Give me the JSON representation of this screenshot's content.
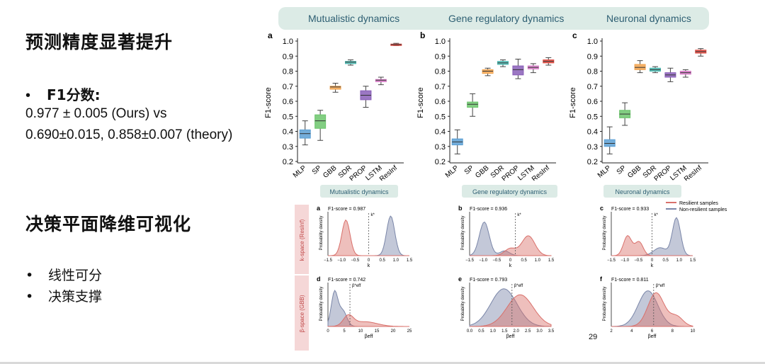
{
  "slide": {
    "title_top": "预测精度显著提升",
    "title_bottom": "决策平面降维可视化",
    "f1_bullet": {
      "marker": "•",
      "label": "F1分数:"
    },
    "f1_line1": "0.977 ± 0.005 (Ours) vs",
    "f1_line2": "0.690±0.015, 0.858±0.007 (theory)",
    "bullets": [
      {
        "marker": "•",
        "text": "线性可分"
      },
      {
        "marker": "•",
        "text": "决策支撑"
      }
    ],
    "page_number": "29"
  },
  "figure_top": {
    "headers": [
      "Mutualistic dynamics",
      "Gene regulatory dynamics",
      "Neuronal dynamics"
    ],
    "ylabel": "F1-score",
    "yticks": [
      "1.0",
      "0.9",
      "0.8",
      "0.7",
      "0.6",
      "0.5",
      "0.4",
      "0.3",
      "0.2"
    ],
    "categories": [
      "MLP",
      "SP",
      "GBB",
      "SDR",
      "PROP",
      "LSTM",
      "ResInf"
    ],
    "colors": [
      "#5a9fd4",
      "#6cc56c",
      "#f2a34e",
      "#49b8b0",
      "#8a5fb8",
      "#d679c6",
      "#e0483e"
    ],
    "panels": [
      {
        "letter": "a",
        "boxes": [
          {
            "q1": 0.355,
            "median": 0.385,
            "q3": 0.41,
            "min": 0.31,
            "max": 0.47
          },
          {
            "q1": 0.42,
            "median": 0.47,
            "q3": 0.51,
            "min": 0.34,
            "max": 0.54
          },
          {
            "q1": 0.68,
            "median": 0.695,
            "q3": 0.7,
            "min": 0.66,
            "max": 0.72
          },
          {
            "q1": 0.85,
            "median": 0.86,
            "q3": 0.865,
            "min": 0.84,
            "max": 0.875
          },
          {
            "q1": 0.61,
            "median": 0.64,
            "q3": 0.67,
            "min": 0.56,
            "max": 0.7
          },
          {
            "q1": 0.73,
            "median": 0.74,
            "q3": 0.745,
            "min": 0.71,
            "max": 0.76
          },
          {
            "q1": 0.974,
            "median": 0.977,
            "q3": 0.98,
            "min": 0.97,
            "max": 0.985
          }
        ]
      },
      {
        "letter": "b",
        "boxes": [
          {
            "q1": 0.31,
            "median": 0.33,
            "q3": 0.35,
            "min": 0.25,
            "max": 0.41
          },
          {
            "q1": 0.56,
            "median": 0.58,
            "q3": 0.595,
            "min": 0.5,
            "max": 0.65
          },
          {
            "q1": 0.785,
            "median": 0.8,
            "q3": 0.81,
            "min": 0.77,
            "max": 0.82
          },
          {
            "q1": 0.845,
            "median": 0.855,
            "q3": 0.865,
            "min": 0.83,
            "max": 0.875
          },
          {
            "q1": 0.775,
            "median": 0.81,
            "q3": 0.835,
            "min": 0.75,
            "max": 0.88
          },
          {
            "q1": 0.815,
            "median": 0.825,
            "q3": 0.835,
            "min": 0.79,
            "max": 0.85
          },
          {
            "q1": 0.855,
            "median": 0.865,
            "q3": 0.875,
            "min": 0.84,
            "max": 0.89
          }
        ]
      },
      {
        "letter": "c",
        "boxes": [
          {
            "q1": 0.3,
            "median": 0.32,
            "q3": 0.345,
            "min": 0.25,
            "max": 0.43
          },
          {
            "q1": 0.49,
            "median": 0.515,
            "q3": 0.54,
            "min": 0.44,
            "max": 0.59
          },
          {
            "q1": 0.81,
            "median": 0.825,
            "q3": 0.845,
            "min": 0.79,
            "max": 0.87
          },
          {
            "q1": 0.8,
            "median": 0.81,
            "q3": 0.82,
            "min": 0.79,
            "max": 0.83
          },
          {
            "q1": 0.76,
            "median": 0.775,
            "q3": 0.79,
            "min": 0.73,
            "max": 0.82
          },
          {
            "q1": 0.78,
            "median": 0.79,
            "q3": 0.8,
            "min": 0.76,
            "max": 0.81
          },
          {
            "q1": 0.92,
            "median": 0.93,
            "q3": 0.94,
            "min": 0.9,
            "max": 0.95
          }
        ]
      }
    ]
  },
  "figure_bottom": {
    "headers": [
      "Mutualistic dynamics",
      "Gene regulatory dynamics",
      "Neuronal dynamics"
    ],
    "row_labels": [
      "k-space (ResInf)",
      "β-space (GBB)"
    ],
    "ylabel": "Probability density",
    "legend": [
      "Resilient samples",
      "Non-resilient samples"
    ],
    "legend_colors": [
      "#d9706b",
      "#7a86a8"
    ],
    "panels": [
      {
        "letter": "a",
        "score": "F1-score = 0.987",
        "marker": "k*",
        "xlabel": "k",
        "xticks": [
          "−1.5",
          "−1.0",
          "−0.5",
          "0",
          "0.5",
          "1.0",
          "1.5"
        ]
      },
      {
        "letter": "b",
        "score": "F1-score = 0.936",
        "marker": "k*",
        "xlabel": "k",
        "xticks": [
          "−1.5",
          "−1.0",
          "−0.5",
          "0",
          "0.5",
          "1.0",
          "1.5"
        ]
      },
      {
        "letter": "c",
        "score": "F1-score = 0.933",
        "marker": "k*",
        "xlabel": "k",
        "xticks": [
          "−1.5",
          "−1.0",
          "−0.5",
          "0",
          "0.5",
          "1.0",
          "1.5"
        ]
      },
      {
        "letter": "d",
        "score": "F1-score = 0.742",
        "marker": "β*eff",
        "xlabel": "βeff",
        "xticks": [
          "0",
          "5",
          "10",
          "15",
          "20",
          "25"
        ]
      },
      {
        "letter": "e",
        "score": "F1-score = 0.793",
        "marker": "β*eff",
        "xlabel": "βeff",
        "xticks": [
          "0.0",
          "0.5",
          "1.0",
          "1.5",
          "2.0",
          "2.5",
          "3.0",
          "3.5"
        ]
      },
      {
        "letter": "f",
        "score": "F1-score = 0.811",
        "marker": "β*eff",
        "xlabel": "βeff",
        "xticks": [
          "2",
          "4",
          "6",
          "8",
          "10"
        ]
      }
    ]
  }
}
